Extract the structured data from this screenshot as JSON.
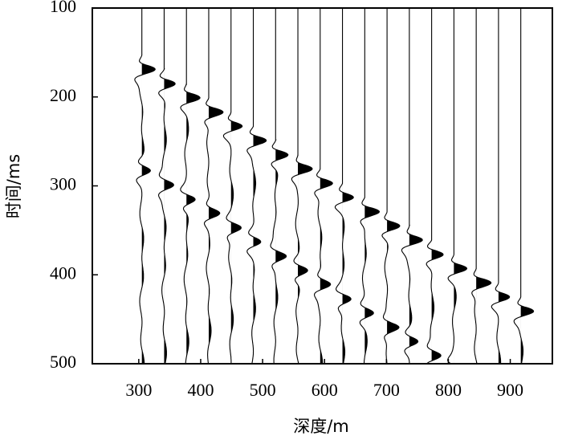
{
  "chart_data": {
    "type": "wiggle",
    "x_label": "深度/m",
    "y_label": "时间/ms",
    "x": [
      305,
      341,
      377,
      413,
      449,
      485,
      521,
      557,
      593,
      629,
      665,
      701,
      737,
      773,
      809,
      845,
      881,
      917
    ],
    "values": [
      165,
      181,
      197,
      213,
      229,
      245,
      261,
      277,
      293,
      309,
      325,
      341,
      357,
      373,
      389,
      405,
      421,
      437
    ],
    "color": "#000000",
    "xlim": [
      225,
      968
    ],
    "xticks": [
      300,
      400,
      500,
      600,
      700,
      800,
      900
    ],
    "ylim": [
      100,
      500
    ],
    "yticks": [
      100,
      200,
      300,
      400,
      500
    ],
    "y_inverted": true
  }
}
